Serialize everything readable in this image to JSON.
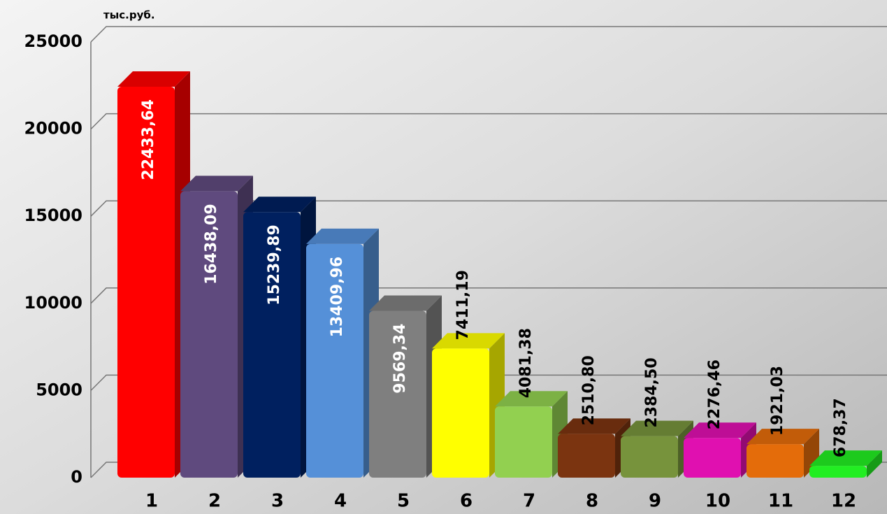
{
  "chart_data": {
    "type": "bar3d",
    "y_label": "тыс.руб.",
    "categories": [
      "1",
      "2",
      "3",
      "4",
      "5",
      "6",
      "7",
      "8",
      "9",
      "10",
      "11",
      "12"
    ],
    "values": [
      22433.64,
      16438.09,
      15239.89,
      13409.96,
      9569.34,
      7411.19,
      4081.38,
      2510.8,
      2384.5,
      2276.46,
      1921.03,
      678.37
    ],
    "value_labels": [
      "22433,64",
      "16438,09",
      "15239,89",
      "13409,96",
      "9569,34",
      "7411,19",
      "4081,38",
      "2510,80",
      "2384,50",
      "2276,46",
      "1921,03",
      "678,37"
    ],
    "colors": [
      "#ff0000",
      "#5f4a7e",
      "#00205f",
      "#5590d8",
      "#7f7f7f",
      "#ffff00",
      "#92d050",
      "#7b3410",
      "#77933c",
      "#e010b0",
      "#e46c0a",
      "#22ee22"
    ],
    "ylim": [
      0,
      25000
    ],
    "yticks": [
      0,
      5000,
      10000,
      15000,
      20000,
      25000
    ],
    "grid": true
  }
}
